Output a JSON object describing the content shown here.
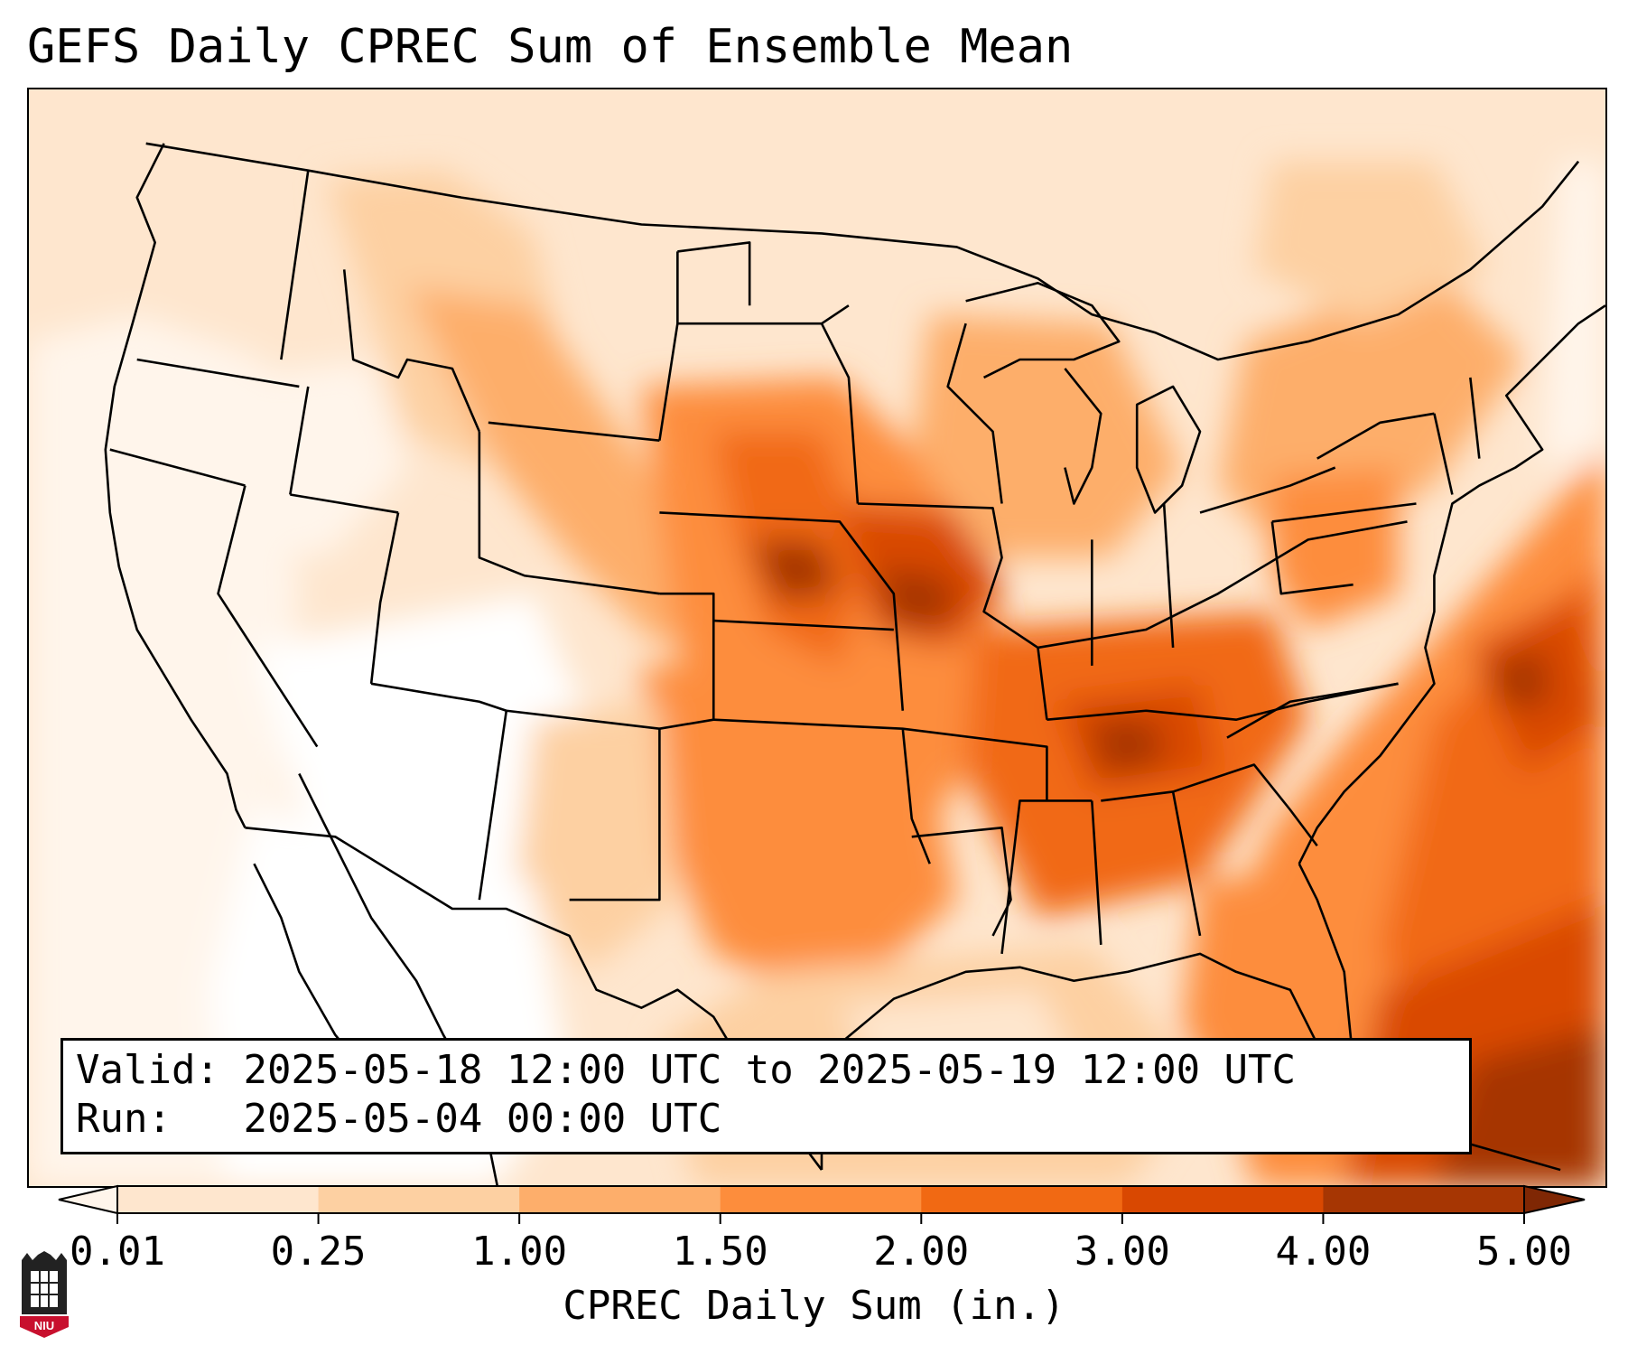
{
  "title": "GEFS Daily CPREC Sum of Ensemble Mean",
  "info": {
    "valid_label": "Valid:",
    "valid_value": "2025-05-18 12:00 UTC to 2025-05-19 12:00 UTC",
    "run_label": "Run:",
    "run_value": "2025-05-04 00:00 UTC"
  },
  "colorbar": {
    "label": "CPREC Daily Sum (in.)",
    "ticks": [
      "0.01",
      "0.25",
      "1.00",
      "1.50",
      "2.00",
      "3.00",
      "4.00",
      "5.00"
    ],
    "colors": [
      "#fff5eb",
      "#fee6ce",
      "#fdd0a2",
      "#fdae6b",
      "#fd8d3c",
      "#f16913",
      "#d94801",
      "#a63603",
      "#7f2704"
    ],
    "extend": "both"
  },
  "logo": {
    "text": "NIU",
    "colors": [
      "#222222",
      "#c8102e"
    ]
  }
}
